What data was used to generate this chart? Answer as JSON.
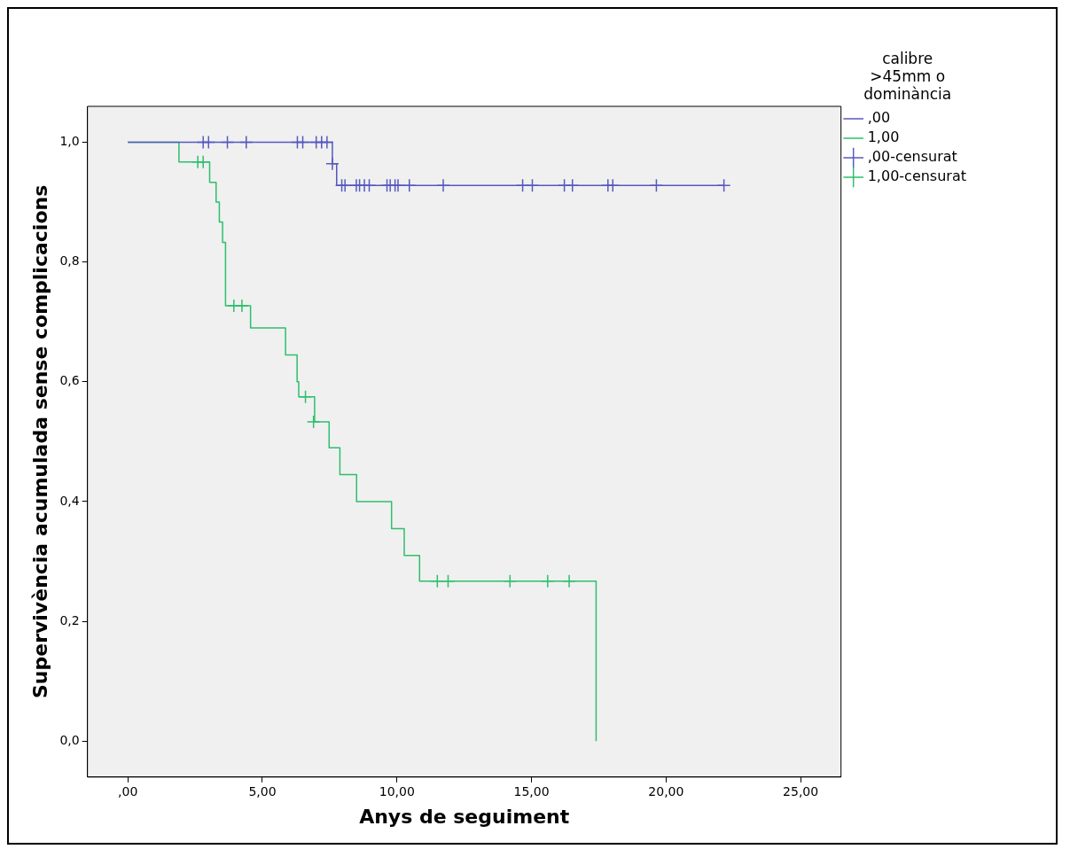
{
  "chart_data": {
    "type": "step",
    "xlabel": "Anys de seguiment",
    "ylabel": "Supervivència acumulada sense complicacions",
    "legend_title": "calibre >45mm o dominància",
    "legend": "right",
    "grid": false,
    "xlim": [
      -1.5,
      26.5
    ],
    "xticks": [
      {
        "value": 0,
        "label": ",00"
      },
      {
        "value": 5,
        "label": "5,00"
      },
      {
        "value": 10,
        "label": "10,00"
      },
      {
        "value": 15,
        "label": "15,00"
      },
      {
        "value": 20,
        "label": "20,00"
      },
      {
        "value": 25,
        "label": "25,00"
      }
    ],
    "ylim": [
      -0.06,
      1.06
    ],
    "yticks": [
      {
        "value": 0,
        "label": "0,0"
      },
      {
        "value": 0.2,
        "label": "0,2"
      },
      {
        "value": 0.4,
        "label": "0,4"
      },
      {
        "value": 0.6,
        "label": "0,6"
      },
      {
        "value": 0.8,
        "label": "0,8"
      },
      {
        "value": 1,
        "label": "1,0"
      }
    ],
    "series": [
      {
        "name": ",00",
        "type": "step",
        "marker": "none",
        "color": "#5659c0",
        "x": [
          0,
          7.6,
          7.76,
          22.15
        ],
        "values": [
          1,
          0.964,
          0.928,
          0.928
        ]
      },
      {
        "name": "1,00",
        "type": "step",
        "marker": "none",
        "color": "#2dbf6d",
        "x": [
          0,
          1.9,
          3.04,
          3.28,
          3.4,
          3.52,
          3.63,
          4.56,
          5.86,
          6.29,
          6.35,
          6.94,
          7.48,
          7.88,
          8.5,
          9.8,
          10.27,
          10.84,
          17.4
        ],
        "values": [
          1,
          0.967,
          0.933,
          0.9,
          0.867,
          0.833,
          0.727,
          0.69,
          0.645,
          0.6,
          0.575,
          0.533,
          0.49,
          0.445,
          0.4,
          0.355,
          0.31,
          0.267,
          0
        ]
      },
      {
        "name": ",00-censurat",
        "type": "scatter",
        "marker": "cross",
        "color": "#5659c0",
        "x": [
          2.8,
          3.0,
          3.7,
          4.4,
          6.3,
          6.5,
          7.0,
          7.2,
          7.4,
          7.6,
          7.95,
          8.07,
          8.49,
          8.61,
          8.79,
          8.97,
          9.63,
          9.75,
          9.93,
          10.04,
          10.46,
          11.72,
          14.67,
          15.03,
          16.22,
          16.52,
          17.84,
          18.02,
          19.64,
          22.15
        ],
        "values": [
          1,
          1,
          1,
          1,
          1,
          1,
          1,
          1,
          1,
          0.964,
          0.928,
          0.928,
          0.928,
          0.928,
          0.928,
          0.928,
          0.928,
          0.928,
          0.928,
          0.928,
          0.928,
          0.928,
          0.928,
          0.928,
          0.928,
          0.928,
          0.928,
          0.928,
          0.928,
          0.928
        ]
      },
      {
        "name": "1,00-censurat",
        "type": "scatter",
        "marker": "cross",
        "color": "#2dbf6d",
        "x": [
          2.6,
          2.8,
          3.94,
          4.24,
          6.6,
          6.9,
          11.5,
          11.9,
          14.2,
          15.6,
          16.4
        ],
        "values": [
          0.967,
          0.967,
          0.727,
          0.727,
          0.575,
          0.533,
          0.267,
          0.267,
          0.267,
          0.267,
          0.267
        ]
      }
    ]
  }
}
